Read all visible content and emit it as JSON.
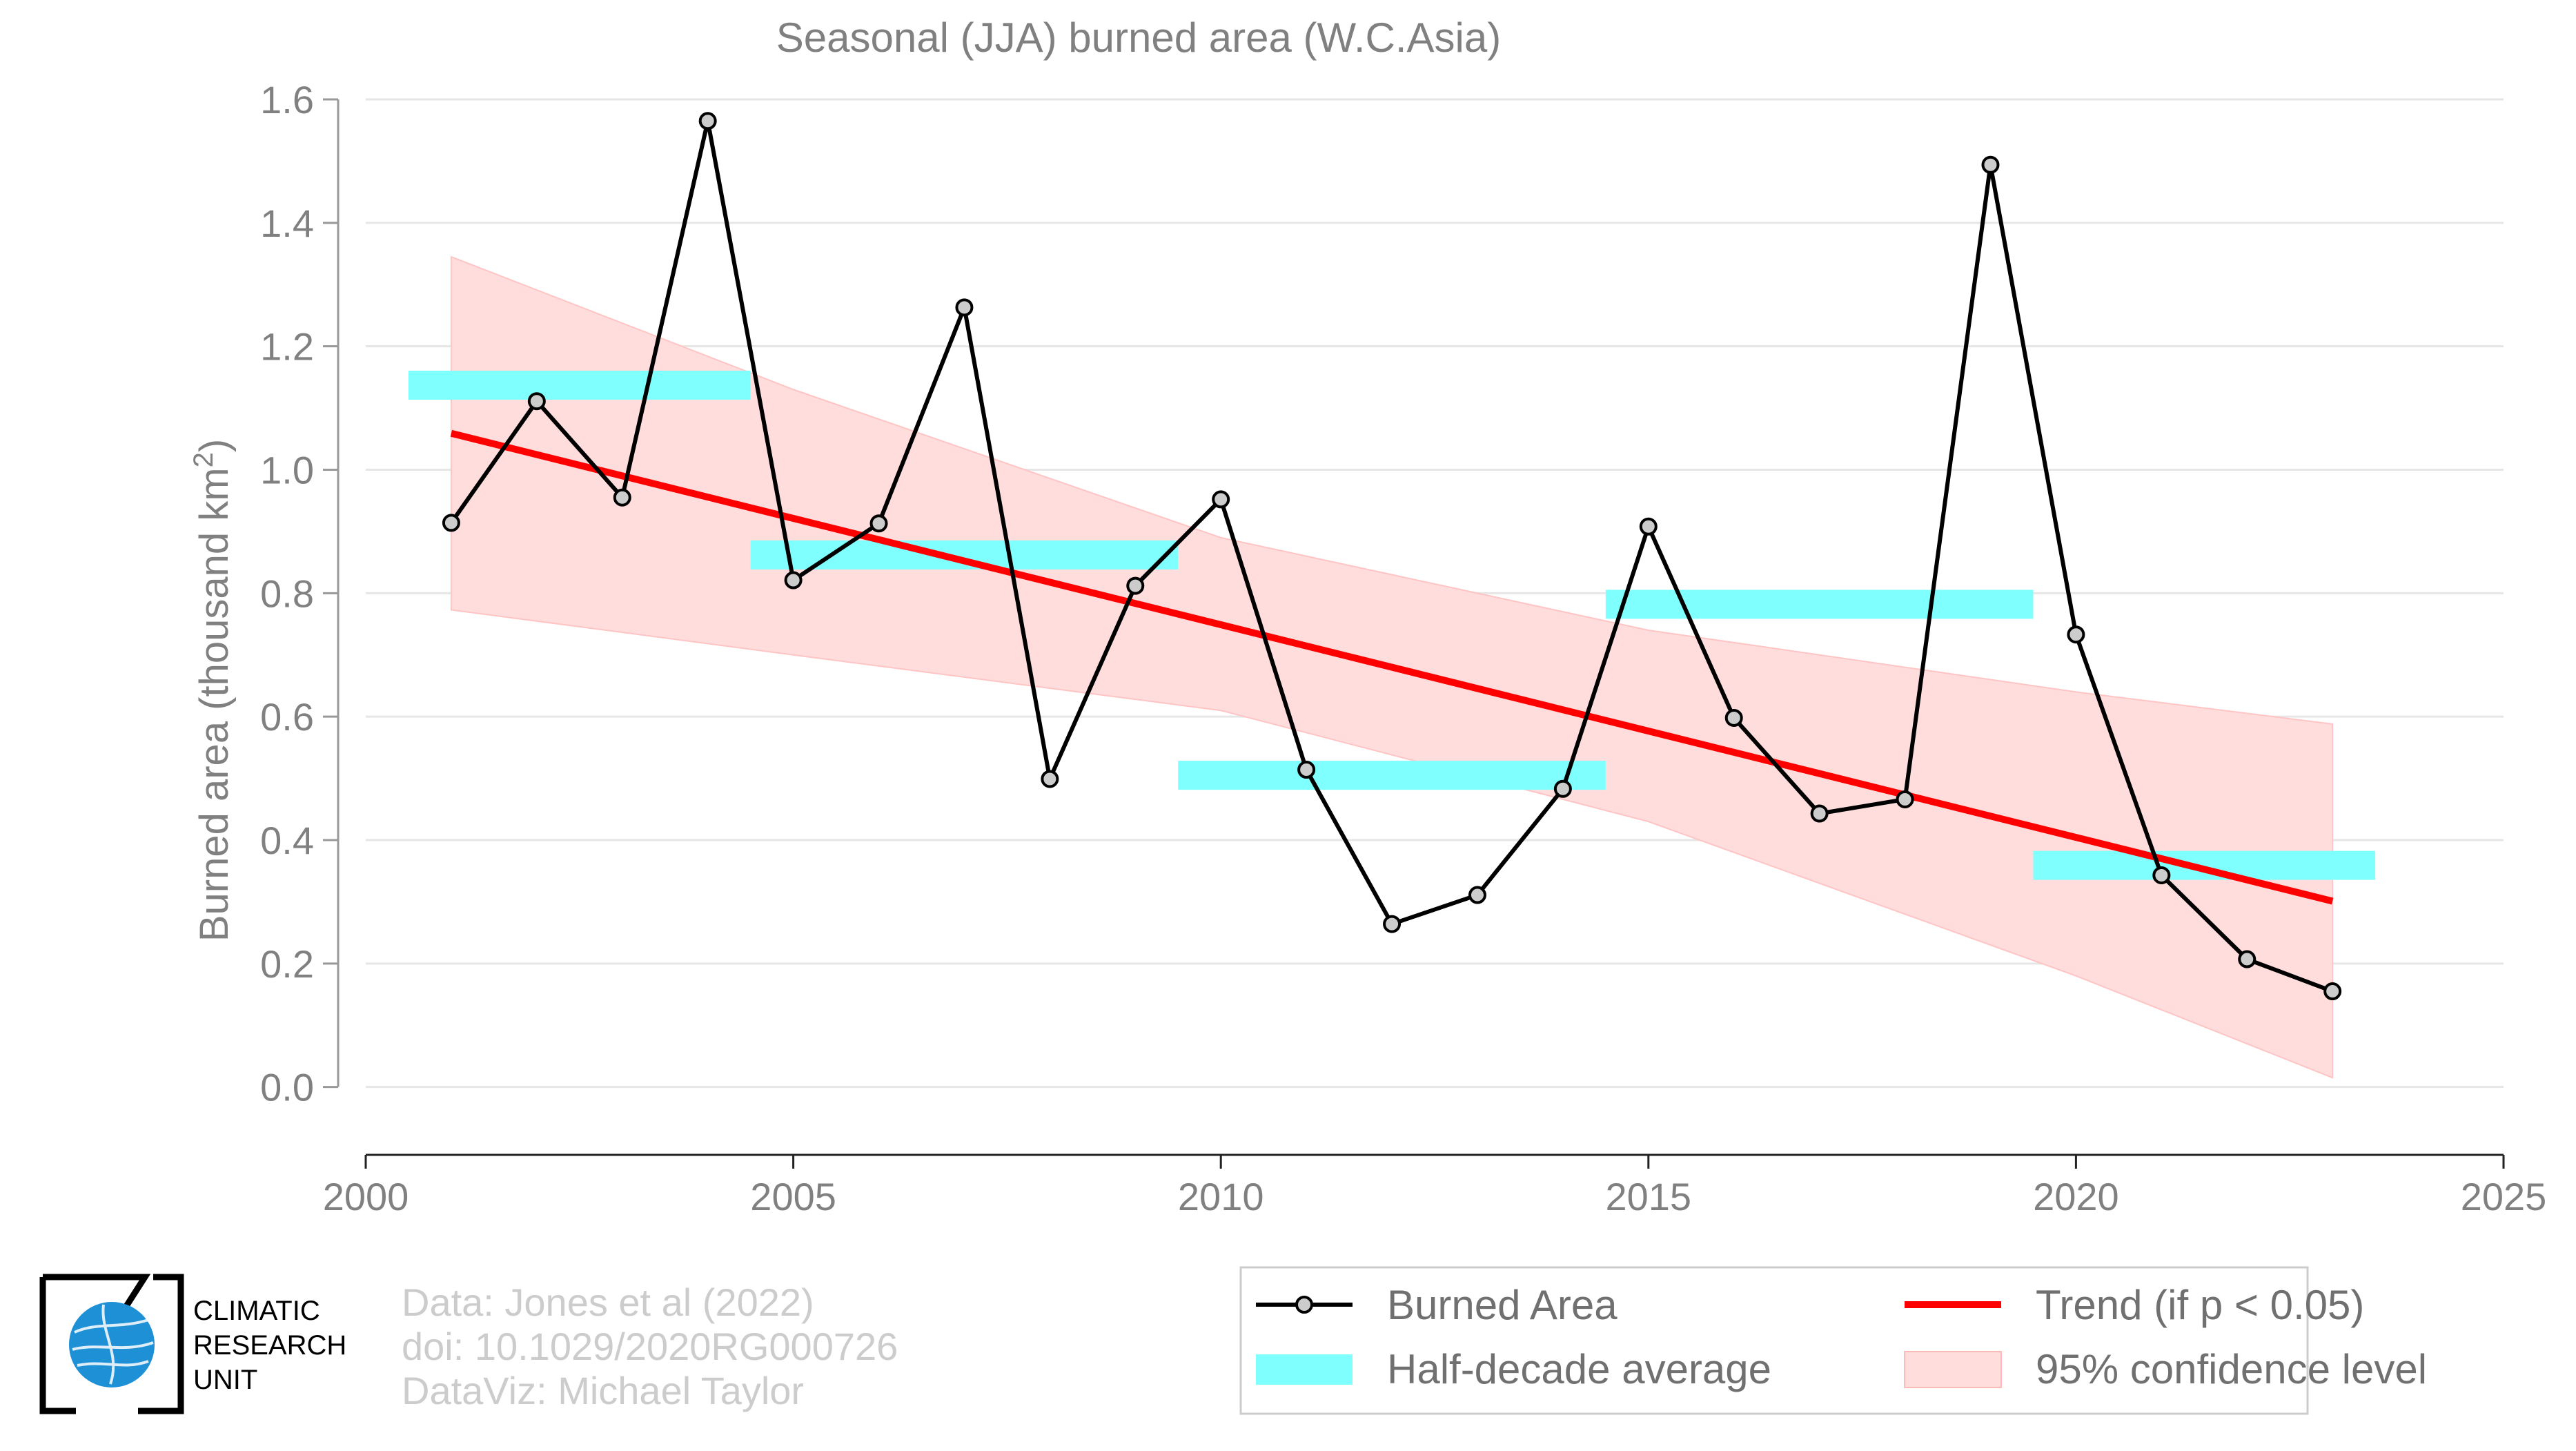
{
  "chart_data": {
    "type": "line",
    "title": "Seasonal (JJA) burned area (W.C.Asia)",
    "ylabel_prefix": "Burned area (thousand km",
    "ylabel_sup": "2",
    "ylabel_suffix": ")",
    "xlim": [
      2000,
      2025
    ],
    "ylim": [
      -0.11,
      1.6
    ],
    "x_ticks": [
      2000,
      2005,
      2010,
      2015,
      2020,
      2025
    ],
    "y_ticks": [
      0.0,
      0.2,
      0.4,
      0.6,
      0.8,
      1.0,
      1.2,
      1.4,
      1.6
    ],
    "y_tick_labels": [
      "0.0",
      "0.2",
      "0.4",
      "0.6",
      "0.8",
      "1.0",
      "1.2",
      "1.4",
      "1.6"
    ],
    "grid": "horizontal",
    "series": [
      {
        "name": "Burned Area",
        "type": "line",
        "color": "#000000",
        "marker_fill": "#cccccc",
        "x": [
          2001,
          2002,
          2003,
          2004,
          2005,
          2006,
          2007,
          2008,
          2009,
          2010,
          2011,
          2012,
          2013,
          2014,
          2015,
          2016,
          2017,
          2018,
          2019,
          2020,
          2021,
          2022,
          2023
        ],
        "y": [
          0.914,
          1.111,
          0.955,
          1.565,
          0.821,
          0.913,
          1.263,
          0.499,
          0.812,
          0.952,
          0.514,
          0.264,
          0.311,
          0.483,
          0.908,
          0.598,
          0.443,
          0.466,
          1.494,
          0.733,
          0.343,
          0.207,
          0.155
        ]
      },
      {
        "name": "Half-decade average",
        "type": "segments",
        "color": "#80ffff",
        "segments": [
          {
            "x0": 2000.5,
            "x1": 2004.5,
            "y": 1.137
          },
          {
            "x0": 2004.5,
            "x1": 2009.5,
            "y": 0.862
          },
          {
            "x0": 2009.5,
            "x1": 2014.5,
            "y": 0.505
          },
          {
            "x0": 2014.5,
            "x1": 2019.5,
            "y": 0.782
          },
          {
            "x0": 2019.5,
            "x1": 2023.5,
            "y": 0.359
          }
        ]
      },
      {
        "name": "Trend (if p < 0.05)",
        "type": "trend",
        "color": "#ff0000",
        "x": [
          2001,
          2023
        ],
        "y": [
          1.059,
          0.301
        ]
      },
      {
        "name": "95% confidence level",
        "type": "band",
        "color": "#ffdddd",
        "x": [
          2001,
          2005,
          2010,
          2015,
          2020,
          2023
        ],
        "upper": [
          1.345,
          1.13,
          0.89,
          0.74,
          0.64,
          0.588
        ],
        "lower": [
          0.773,
          0.7,
          0.61,
          0.43,
          0.18,
          0.015
        ]
      }
    ],
    "legend": {
      "placement": "bottom-right",
      "entries": [
        "Burned Area",
        "Trend (if p < 0.05)",
        "Half-decade average",
        "95% confidence level"
      ]
    }
  },
  "credits": {
    "line1": "Data: Jones et al (2022)",
    "line2": "doi: 10.1029/2020RG000726",
    "line3": "DataViz: Michael Taylor"
  },
  "logo": {
    "line1": "CLIMATIC",
    "line2": "RESEARCH",
    "line3": "UNIT",
    "color": "#1e90d6"
  }
}
